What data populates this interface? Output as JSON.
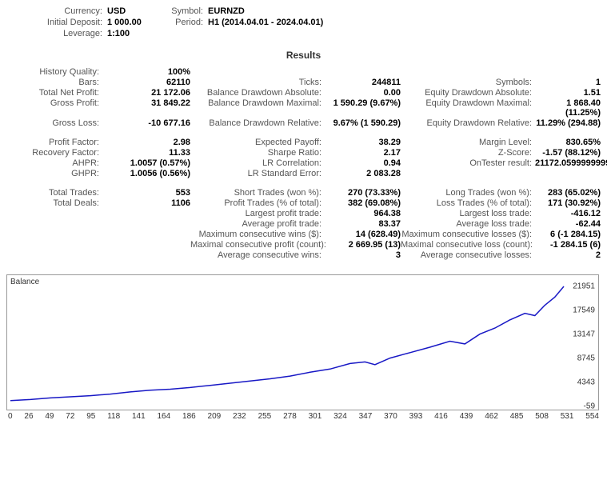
{
  "header": {
    "currency_lbl": "Currency:",
    "currency_val": "USD",
    "symbol_lbl": "Symbol:",
    "symbol_val": "EURNZD",
    "deposit_lbl": "Initial Deposit:",
    "deposit_val": "1 000.00",
    "period_lbl": "Period:",
    "period_val": "H1 (2014.04.01 - 2024.04.01)",
    "leverage_lbl": "Leverage:",
    "leverage_val": "1:100"
  },
  "results_title": "Results",
  "rows": {
    "history_quality": {
      "lbl": "History Quality:",
      "val": "100%"
    },
    "bars": {
      "lbl": "Bars:",
      "val": "62110"
    },
    "ticks": {
      "lbl": "Ticks:",
      "val": "244811"
    },
    "symbols": {
      "lbl": "Symbols:",
      "val": "1"
    },
    "net_profit": {
      "lbl": "Total Net Profit:",
      "val": "21 172.06"
    },
    "bal_dd_abs": {
      "lbl": "Balance Drawdown Absolute:",
      "val": "0.00"
    },
    "eq_dd_abs": {
      "lbl": "Equity Drawdown Absolute:",
      "val": "1.51"
    },
    "gross_profit": {
      "lbl": "Gross Profit:",
      "val": "31 849.22"
    },
    "bal_dd_max": {
      "lbl": "Balance Drawdown Maximal:",
      "val": "1 590.29 (9.67%)"
    },
    "eq_dd_max": {
      "lbl": "Equity Drawdown Maximal:",
      "val": "1 868.40 (11.25%)"
    },
    "gross_loss": {
      "lbl": "Gross Loss:",
      "val": "-10 677.16"
    },
    "bal_dd_rel": {
      "lbl": "Balance Drawdown Relative:",
      "val": "9.67% (1 590.29)"
    },
    "eq_dd_rel": {
      "lbl": "Equity Drawdown Relative:",
      "val": "11.29% (294.88)"
    },
    "profit_factor": {
      "lbl": "Profit Factor:",
      "val": "2.98"
    },
    "exp_payoff": {
      "lbl": "Expected Payoff:",
      "val": "38.29"
    },
    "margin_level": {
      "lbl": "Margin Level:",
      "val": "830.65%"
    },
    "recovery_factor": {
      "lbl": "Recovery Factor:",
      "val": "11.33"
    },
    "sharpe": {
      "lbl": "Sharpe Ratio:",
      "val": "2.17"
    },
    "zscore": {
      "lbl": "Z-Score:",
      "val": "-1.57 (88.12%)"
    },
    "ahpr": {
      "lbl": "AHPR:",
      "val": "1.0057 (0.57%)"
    },
    "lr_corr": {
      "lbl": "LR Correlation:",
      "val": "0.94"
    },
    "ontester": {
      "lbl": "OnTester result:",
      "val": "21172.05999999999"
    },
    "ghpr": {
      "lbl": "GHPR:",
      "val": "1.0056 (0.56%)"
    },
    "lr_stderr": {
      "lbl": "LR Standard Error:",
      "val": "2 083.28"
    },
    "total_trades": {
      "lbl": "Total Trades:",
      "val": "553"
    },
    "short_trades": {
      "lbl": "Short Trades (won %):",
      "val": "270 (73.33%)"
    },
    "long_trades": {
      "lbl": "Long Trades (won %):",
      "val": "283 (65.02%)"
    },
    "total_deals": {
      "lbl": "Total Deals:",
      "val": "1106"
    },
    "profit_trades": {
      "lbl": "Profit Trades (% of total):",
      "val": "382 (69.08%)"
    },
    "loss_trades": {
      "lbl": "Loss Trades (% of total):",
      "val": "171 (30.92%)"
    },
    "largest_profit": {
      "lbl": "Largest profit trade:",
      "val": "964.38"
    },
    "largest_loss": {
      "lbl": "Largest loss trade:",
      "val": "-416.12"
    },
    "avg_profit": {
      "lbl": "Average profit trade:",
      "val": "83.37"
    },
    "avg_loss": {
      "lbl": "Average loss trade:",
      "val": "-62.44"
    },
    "max_cons_wins": {
      "lbl": "Maximum consecutive wins ($):",
      "val": "14 (628.49)"
    },
    "max_cons_losses": {
      "lbl": "Maximum consecutive losses ($):",
      "val": "6 (-1 284.15)"
    },
    "max_cons_profit": {
      "lbl": "Maximal consecutive profit (count):",
      "val": "2 669.95 (13)"
    },
    "max_cons_loss": {
      "lbl": "Maximal consecutive loss (count):",
      "val": "-1 284.15 (6)"
    },
    "avg_cons_wins": {
      "lbl": "Average consecutive wins:",
      "val": "3"
    },
    "avg_cons_losses": {
      "lbl": "Average consecutive losses:",
      "val": "2"
    }
  },
  "chart": {
    "title": "Balance",
    "line_color": "#1818c5",
    "border_color": "#999999",
    "y_ticks": [
      "21951",
      "17549",
      "13147",
      "8745",
      "4343",
      "-59"
    ],
    "x_ticks": [
      "0",
      "26",
      "49",
      "72",
      "95",
      "118",
      "141",
      "164",
      "186",
      "209",
      "232",
      "255",
      "278",
      "301",
      "324",
      "347",
      "370",
      "393",
      "416",
      "439",
      "462",
      "485",
      "508",
      "531",
      "554"
    ],
    "y_min": -59,
    "y_max": 21951,
    "x_max": 554,
    "points": [
      [
        0,
        1000
      ],
      [
        20,
        1200
      ],
      [
        40,
        1500
      ],
      [
        60,
        1700
      ],
      [
        80,
        1900
      ],
      [
        100,
        2200
      ],
      [
        120,
        2600
      ],
      [
        140,
        2900
      ],
      [
        160,
        3100
      ],
      [
        180,
        3400
      ],
      [
        200,
        3800
      ],
      [
        220,
        4200
      ],
      [
        240,
        4600
      ],
      [
        260,
        5000
      ],
      [
        280,
        5500
      ],
      [
        300,
        6200
      ],
      [
        320,
        6800
      ],
      [
        340,
        7800
      ],
      [
        355,
        8100
      ],
      [
        365,
        7600
      ],
      [
        380,
        8800
      ],
      [
        400,
        9800
      ],
      [
        420,
        10800
      ],
      [
        440,
        11900
      ],
      [
        455,
        11400
      ],
      [
        470,
        13200
      ],
      [
        485,
        14300
      ],
      [
        500,
        15800
      ],
      [
        515,
        17000
      ],
      [
        525,
        16600
      ],
      [
        535,
        18500
      ],
      [
        545,
        20000
      ],
      [
        554,
        21951
      ]
    ]
  }
}
